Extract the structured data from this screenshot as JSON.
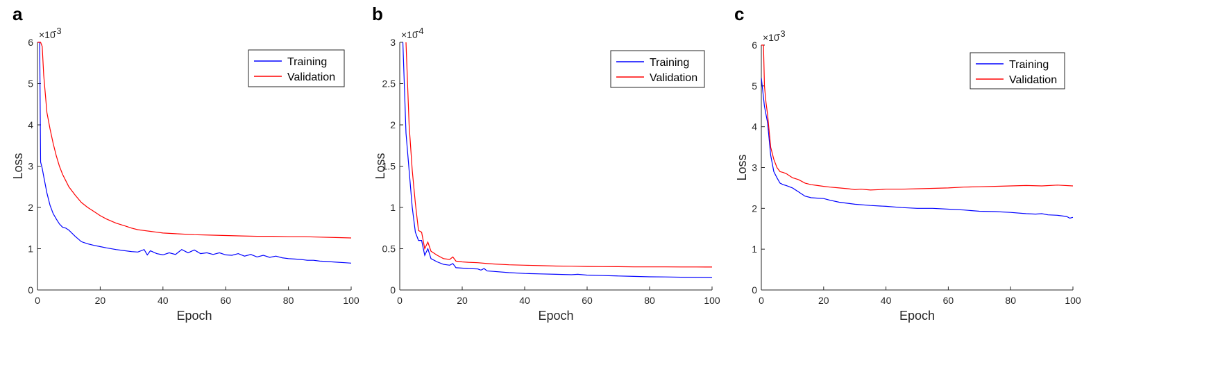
{
  "chart_data": [
    {
      "panel": "a",
      "type": "line",
      "xlabel": "Epoch",
      "ylabel": "Loss",
      "y_multiplier": "×10",
      "y_exponent": "-3",
      "xlim": [
        0,
        100
      ],
      "ylim": [
        0,
        6
      ],
      "xticks": [
        0,
        20,
        40,
        60,
        80,
        100
      ],
      "yticks": [
        0,
        1,
        2,
        3,
        4,
        5,
        6
      ],
      "legend": {
        "placement": "top-right",
        "entries": [
          "Training",
          "Validation"
        ]
      },
      "series": [
        {
          "name": "Training",
          "color": "#0000ff",
          "x": [
            0,
            0.7,
            1,
            1.5,
            2,
            3,
            4,
            5,
            6,
            7,
            8,
            9,
            10,
            12,
            14,
            16,
            18,
            20,
            22,
            25,
            28,
            30,
            32,
            34,
            35,
            36,
            38,
            40,
            42,
            44,
            46,
            48,
            50,
            52,
            54,
            56,
            58,
            60,
            62,
            64,
            66,
            68,
            70,
            72,
            74,
            76,
            78,
            80,
            82,
            84,
            86,
            88,
            90,
            92,
            94,
            96,
            98,
            100
          ],
          "y": [
            6,
            6,
            3.1,
            2.95,
            2.75,
            2.35,
            2.05,
            1.85,
            1.72,
            1.6,
            1.52,
            1.5,
            1.45,
            1.3,
            1.17,
            1.12,
            1.08,
            1.05,
            1.02,
            0.98,
            0.95,
            0.93,
            0.92,
            0.98,
            0.85,
            0.95,
            0.88,
            0.85,
            0.9,
            0.86,
            0.98,
            0.9,
            0.97,
            0.88,
            0.9,
            0.86,
            0.9,
            0.85,
            0.84,
            0.88,
            0.82,
            0.86,
            0.8,
            0.84,
            0.79,
            0.82,
            0.78,
            0.76,
            0.75,
            0.74,
            0.72,
            0.72,
            0.7,
            0.69,
            0.68,
            0.67,
            0.66,
            0.65
          ]
        },
        {
          "name": "Validation",
          "color": "#ff0000",
          "x": [
            0,
            1,
            1.5,
            2,
            3,
            4,
            5,
            6,
            7,
            8,
            9,
            10,
            12,
            14,
            16,
            18,
            20,
            22,
            25,
            28,
            30,
            32,
            34,
            36,
            38,
            40,
            45,
            50,
            55,
            60,
            65,
            70,
            75,
            80,
            85,
            90,
            95,
            100
          ],
          "y": [
            6,
            6,
            5.9,
            5.2,
            4.3,
            3.9,
            3.55,
            3.25,
            3.0,
            2.8,
            2.65,
            2.5,
            2.3,
            2.12,
            2.0,
            1.9,
            1.8,
            1.72,
            1.62,
            1.55,
            1.5,
            1.46,
            1.44,
            1.42,
            1.4,
            1.38,
            1.36,
            1.34,
            1.33,
            1.32,
            1.31,
            1.3,
            1.3,
            1.29,
            1.29,
            1.28,
            1.27,
            1.26
          ]
        }
      ]
    },
    {
      "panel": "b",
      "type": "line",
      "xlabel": "Epoch",
      "ylabel": "Loss",
      "y_multiplier": "×10",
      "y_exponent": "-4",
      "xlim": [
        0,
        100
      ],
      "ylim": [
        0,
        3
      ],
      "xticks": [
        0,
        20,
        40,
        60,
        80,
        100
      ],
      "yticks": [
        0,
        0.5,
        1,
        1.5,
        2,
        2.5,
        3
      ],
      "legend": {
        "placement": "top-right",
        "entries": [
          "Training",
          "Validation"
        ]
      },
      "series": [
        {
          "name": "Training",
          "color": "#0000ff",
          "x": [
            1,
            2,
            3,
            4,
            5,
            6,
            7,
            8,
            9,
            10,
            12,
            14,
            16,
            17,
            18,
            20,
            22,
            25,
            26,
            27,
            28,
            30,
            35,
            40,
            45,
            50,
            55,
            57,
            60,
            65,
            70,
            75,
            80,
            85,
            90,
            95,
            100
          ],
          "y": [
            3,
            1.9,
            1.45,
            1.0,
            0.7,
            0.6,
            0.6,
            0.42,
            0.5,
            0.38,
            0.34,
            0.31,
            0.3,
            0.32,
            0.27,
            0.265,
            0.26,
            0.255,
            0.24,
            0.26,
            0.23,
            0.225,
            0.21,
            0.2,
            0.195,
            0.19,
            0.185,
            0.19,
            0.18,
            0.175,
            0.17,
            0.165,
            0.16,
            0.158,
            0.155,
            0.152,
            0.15
          ]
        },
        {
          "name": "Validation",
          "color": "#ff0000",
          "x": [
            2,
            3,
            4,
            5,
            6,
            7,
            8,
            9,
            10,
            12,
            14,
            16,
            17,
            18,
            20,
            22,
            25,
            28,
            30,
            35,
            40,
            45,
            50,
            55,
            60,
            65,
            70,
            75,
            80,
            85,
            90,
            95,
            100
          ],
          "y": [
            3,
            2.0,
            1.45,
            1.05,
            0.72,
            0.7,
            0.5,
            0.58,
            0.47,
            0.42,
            0.38,
            0.37,
            0.4,
            0.35,
            0.34,
            0.335,
            0.33,
            0.32,
            0.315,
            0.305,
            0.3,
            0.295,
            0.29,
            0.288,
            0.285,
            0.283,
            0.282,
            0.28,
            0.28,
            0.28,
            0.279,
            0.279,
            0.278
          ]
        }
      ]
    },
    {
      "panel": "c",
      "type": "line",
      "xlabel": "Epoch",
      "ylabel": "Loss",
      "y_multiplier": "×10",
      "y_exponent": "-3",
      "xlim": [
        0,
        100
      ],
      "ylim": [
        0,
        6
      ],
      "xticks": [
        0,
        20,
        40,
        60,
        80,
        100
      ],
      "yticks": [
        0,
        1,
        2,
        3,
        4,
        5,
        6
      ],
      "legend": {
        "placement": "top-right",
        "entries": [
          "Training",
          "Validation"
        ]
      },
      "series": [
        {
          "name": "Training",
          "color": "#0000ff",
          "x": [
            0,
            1,
            2,
            3,
            4,
            5,
            6,
            7,
            8,
            10,
            12,
            14,
            16,
            18,
            20,
            22,
            25,
            30,
            35,
            40,
            45,
            50,
            55,
            60,
            65,
            70,
            75,
            80,
            85,
            88,
            90,
            92,
            95,
            98,
            99,
            100
          ],
          "y": [
            5.2,
            4.5,
            4.1,
            3.3,
            2.9,
            2.75,
            2.62,
            2.58,
            2.56,
            2.5,
            2.4,
            2.3,
            2.26,
            2.25,
            2.24,
            2.2,
            2.15,
            2.1,
            2.07,
            2.05,
            2.02,
            2.0,
            2.0,
            1.98,
            1.96,
            1.93,
            1.92,
            1.9,
            1.87,
            1.86,
            1.87,
            1.84,
            1.83,
            1.8,
            1.76,
            1.78
          ]
        },
        {
          "name": "Validation",
          "color": "#ff0000",
          "x": [
            0,
            0.7,
            1,
            1.5,
            2,
            3,
            4,
            5,
            6,
            7,
            8,
            10,
            12,
            14,
            16,
            18,
            20,
            22,
            25,
            28,
            30,
            32,
            35,
            38,
            40,
            45,
            50,
            55,
            60,
            65,
            70,
            75,
            80,
            85,
            90,
            95,
            100
          ],
          "y": [
            6,
            6,
            5.0,
            4.6,
            4.3,
            3.5,
            3.2,
            3.0,
            2.9,
            2.88,
            2.85,
            2.75,
            2.7,
            2.62,
            2.58,
            2.56,
            2.54,
            2.52,
            2.5,
            2.48,
            2.46,
            2.47,
            2.45,
            2.46,
            2.47,
            2.47,
            2.48,
            2.49,
            2.5,
            2.52,
            2.53,
            2.54,
            2.55,
            2.56,
            2.55,
            2.57,
            2.55
          ]
        }
      ]
    }
  ]
}
